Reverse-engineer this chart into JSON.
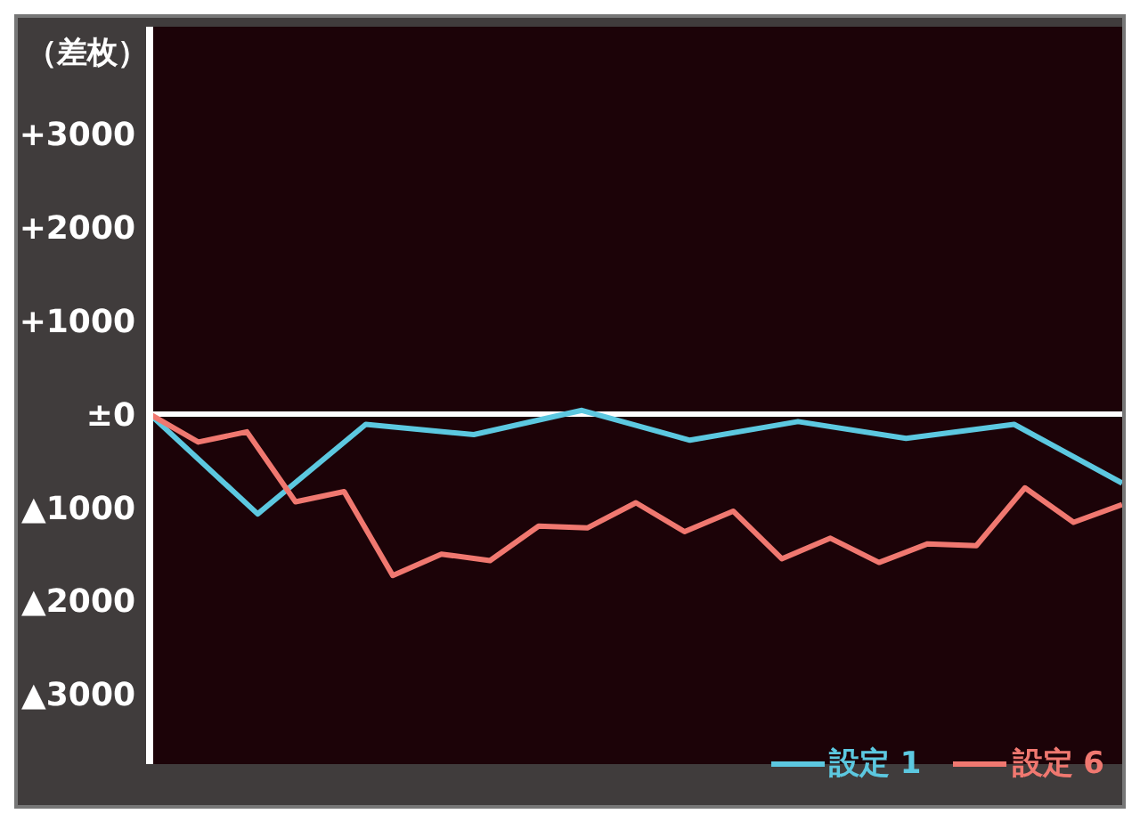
{
  "chart_data": {
    "type": "line",
    "ylabel": "（差枚）",
    "ylim": [
      -3750,
      4150
    ],
    "yticks": [
      {
        "value": 3000,
        "label": "+3000"
      },
      {
        "value": 2000,
        "label": "+2000"
      },
      {
        "value": 1000,
        "label": "+1000"
      },
      {
        "value": 0,
        "label": "±0"
      },
      {
        "value": -1000,
        "label": "▲1000"
      },
      {
        "value": -2000,
        "label": "▲2000"
      },
      {
        "value": -3000,
        "label": "▲3000"
      }
    ],
    "tick_labels": "y",
    "grid": false,
    "legend": "bottom right",
    "marker": "none",
    "line_style": "solid",
    "ref_lines": [
      {
        "axis": "y",
        "value": 0,
        "color": "#ffffff"
      }
    ],
    "categories": [
      null,
      null,
      null,
      null,
      null,
      null,
      null,
      null,
      null,
      null,
      null,
      null,
      null,
      null,
      null,
      null,
      null,
      null,
      null,
      null,
      null,
      null,
      null,
      null,
      null,
      null,
      null,
      null,
      null,
      null,
      null,
      null,
      null,
      null,
      null,
      null,
      null,
      null,
      null,
      null,
      null,
      null,
      null,
      null,
      null,
      null,
      null,
      null,
      null,
      null,
      null,
      null,
      null,
      null,
      null,
      null,
      null,
      null,
      null,
      null,
      null,
      null,
      null,
      null,
      null,
      null,
      null,
      null,
      null,
      null,
      null,
      null,
      null,
      null,
      null,
      null,
      null,
      null,
      null,
      null,
      null,
      null,
      null,
      null,
      null,
      null,
      null,
      null,
      null,
      null,
      null,
      null,
      null,
      null,
      null,
      null,
      null,
      null,
      null,
      null,
      null,
      null,
      null,
      null,
      null,
      null,
      null,
      null,
      null,
      null,
      null,
      null,
      null,
      null,
      null,
      null,
      null,
      null,
      null,
      null,
      null,
      null,
      null,
      null,
      null,
      null,
      null,
      null,
      null,
      null,
      null,
      null,
      null,
      null,
      null,
      null,
      null,
      null,
      null,
      null,
      null,
      null,
      null,
      null,
      null,
      null,
      null,
      null,
      null,
      null,
      null,
      null,
      null,
      null,
      null,
      null,
      null,
      null,
      null,
      null,
      null,
      null,
      null,
      null,
      null,
      null,
      null,
      null,
      null,
      null,
      null,
      null,
      null,
      null,
      null,
      null,
      null,
      null,
      null,
      null,
      null
    ],
    "series": [
      {
        "name": "設定 1",
        "color": "#5cc8e0",
        "values": [
          0,
          null,
          null,
          null,
          null,
          null,
          null,
          null,
          null,
          null,
          null,
          null,
          null,
          null,
          null,
          null,
          null,
          null,
          null,
          null,
          -1070,
          null,
          null,
          null,
          null,
          null,
          null,
          null,
          null,
          null,
          null,
          null,
          null,
          null,
          null,
          null,
          null,
          null,
          null,
          null,
          -110,
          null,
          null,
          null,
          null,
          null,
          null,
          null,
          null,
          null,
          null,
          null,
          null,
          null,
          null,
          null,
          null,
          null,
          null,
          null,
          -220,
          null,
          null,
          null,
          null,
          null,
          null,
          null,
          null,
          null,
          null,
          null,
          null,
          null,
          null,
          null,
          null,
          null,
          null,
          null,
          40,
          null,
          null,
          null,
          null,
          null,
          null,
          null,
          null,
          null,
          null,
          null,
          null,
          null,
          null,
          null,
          null,
          null,
          null,
          null,
          -280,
          null,
          null,
          null,
          null,
          null,
          null,
          null,
          null,
          null,
          null,
          null,
          null,
          null,
          null,
          null,
          null,
          null,
          null,
          null,
          -80,
          null,
          null,
          null,
          null,
          null,
          null,
          null,
          null,
          null,
          null,
          null,
          null,
          null,
          null,
          null,
          null,
          null,
          null,
          null,
          -260,
          null,
          null,
          null,
          null,
          null,
          null,
          null,
          null,
          null,
          null,
          null,
          null,
          null,
          null,
          null,
          null,
          null,
          null,
          null,
          -110,
          null,
          null,
          null,
          null,
          null,
          null,
          null,
          null,
          null,
          null,
          null,
          null,
          null,
          null,
          null,
          null,
          null,
          null,
          null,
          -740
        ]
      },
      {
        "name": "設定 6",
        "color": "#f07870",
        "values": [
          0,
          null,
          null,
          null,
          null,
          null,
          null,
          null,
          null,
          -300,
          null,
          null,
          null,
          null,
          null,
          null,
          null,
          null,
          -190,
          null,
          null,
          null,
          null,
          null,
          null,
          null,
          null,
          -940,
          null,
          null,
          null,
          null,
          null,
          null,
          null,
          null,
          -830,
          null,
          null,
          null,
          null,
          null,
          null,
          null,
          null,
          -1730,
          null,
          null,
          null,
          null,
          null,
          null,
          null,
          null,
          -1500,
          null,
          null,
          null,
          null,
          null,
          null,
          null,
          null,
          -1570,
          null,
          null,
          null,
          null,
          null,
          null,
          null,
          null,
          -1200,
          null,
          null,
          null,
          null,
          null,
          null,
          null,
          null,
          -1220,
          null,
          null,
          null,
          null,
          null,
          null,
          null,
          null,
          -950,
          null,
          null,
          null,
          null,
          null,
          null,
          null,
          null,
          -1260,
          null,
          null,
          null,
          null,
          null,
          null,
          null,
          null,
          -1040,
          null,
          null,
          null,
          null,
          null,
          null,
          null,
          null,
          -1550,
          null,
          null,
          null,
          null,
          null,
          null,
          null,
          null,
          -1330,
          null,
          null,
          null,
          null,
          null,
          null,
          null,
          null,
          -1590,
          null,
          null,
          null,
          null,
          null,
          null,
          null,
          null,
          -1390,
          null,
          null,
          null,
          null,
          null,
          null,
          null,
          null,
          -1410,
          null,
          null,
          null,
          null,
          null,
          null,
          null,
          null,
          -790,
          null,
          null,
          null,
          null,
          null,
          null,
          null,
          null,
          -1160,
          null,
          null,
          null,
          null,
          null,
          null,
          null,
          null,
          -970
        ]
      }
    ]
  }
}
